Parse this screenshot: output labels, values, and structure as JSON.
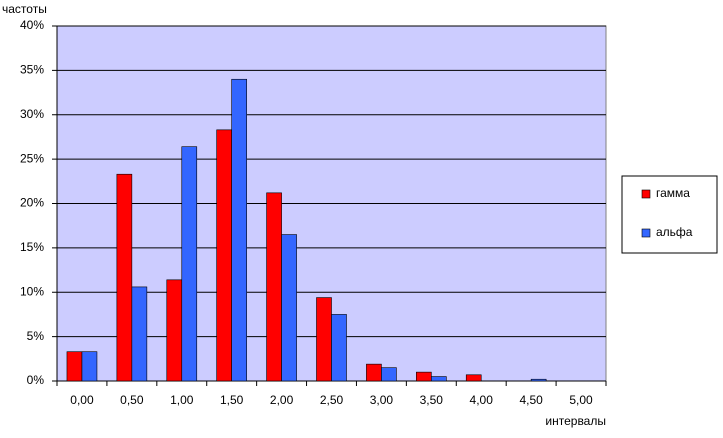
{
  "chart_data": {
    "type": "bar",
    "y_label": "частоты",
    "x_label": "интервалы",
    "categories": [
      "0,00",
      "0,50",
      "1,00",
      "1,50",
      "2,00",
      "2,50",
      "3,00",
      "3,50",
      "4,00",
      "4,50",
      "5,00"
    ],
    "series": [
      {
        "name": "гамма",
        "color": "#ff0000",
        "values": [
          3.3,
          23.3,
          11.4,
          28.3,
          21.2,
          9.4,
          1.9,
          1.0,
          0.7,
          0,
          0
        ]
      },
      {
        "name": "альфа",
        "color": "#3366ff",
        "values": [
          3.3,
          10.6,
          26.4,
          34.0,
          16.5,
          7.5,
          1.5,
          0.5,
          0,
          0.2,
          0
        ]
      }
    ],
    "ylim": [
      0,
      40
    ],
    "yticks": [
      {
        "value": 0,
        "label": "0%"
      },
      {
        "value": 5,
        "label": "5%"
      },
      {
        "value": 10,
        "label": "10%"
      },
      {
        "value": 15,
        "label": "15%"
      },
      {
        "value": 20,
        "label": "20%"
      },
      {
        "value": 25,
        "label": "25%"
      },
      {
        "value": 30,
        "label": "30%"
      },
      {
        "value": 35,
        "label": "35%"
      },
      {
        "value": 40,
        "label": "40%"
      }
    ],
    "grid": true,
    "legend": "right",
    "plot_background": "#ccccff"
  }
}
